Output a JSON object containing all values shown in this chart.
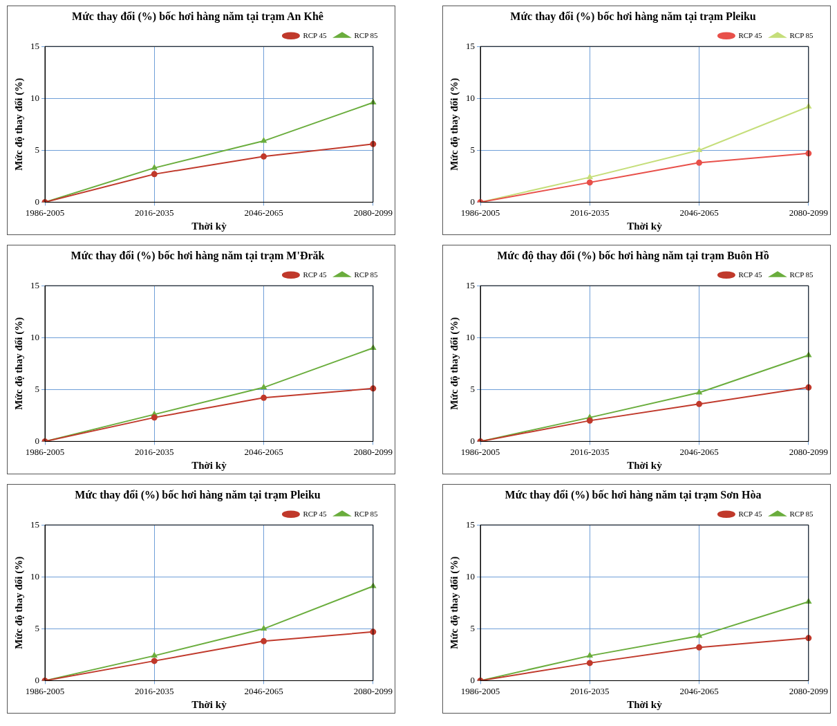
{
  "chart_data": [
    {
      "type": "line",
      "title": "Mức thay đổi (%) bốc hơi hàng năm tại trạm An Khê",
      "xlabel": "Thời kỳ",
      "ylabel": "Mức độ thay đổi (%)",
      "categories": [
        "1986-2005",
        "2016-2035",
        "2046-2065",
        "2080-2099"
      ],
      "ylim": [
        0,
        15
      ],
      "yticks": [
        0,
        5,
        10,
        15
      ],
      "grid": true,
      "legend": "top right",
      "line_style": "solid",
      "series": [
        {
          "name": "RCP 45",
          "color": "#c0392b",
          "marker": "circle",
          "values": [
            0,
            2.7,
            4.4,
            5.6
          ]
        },
        {
          "name": "RCP 85",
          "color": "#6aad3d",
          "marker": "triangle",
          "values": [
            0,
            3.3,
            5.9,
            9.6
          ]
        }
      ]
    },
    {
      "type": "line",
      "title": "Mức thay đổi (%) bốc hơi hàng năm tại trạm Pleiku",
      "xlabel": "Thời kỳ",
      "ylabel": "Mức độ thay đổi (%)",
      "categories": [
        "1986-2005",
        "2016-2035",
        "2046-2065",
        "2080-2099"
      ],
      "ylim": [
        0,
        15
      ],
      "yticks": [
        0,
        5,
        10,
        15
      ],
      "grid": true,
      "legend": "top right",
      "line_style": "solid",
      "series": [
        {
          "name": "RCP 45",
          "color": "#e8504a",
          "marker": "circle",
          "values": [
            0,
            1.9,
            3.8,
            4.7
          ]
        },
        {
          "name": "RCP 85",
          "color": "#c5de7a",
          "marker": "triangle",
          "values": [
            0,
            2.4,
            5.0,
            9.2
          ]
        }
      ]
    },
    {
      "type": "line",
      "title": "Mức thay đổi (%) bốc hơi hàng năm tại trạm M'Đrăk",
      "xlabel": "Thời kỳ",
      "ylabel": "Mức độ thay đổi (%)",
      "categories": [
        "1986-2005",
        "2016-2035",
        "2046-2065",
        "2080-2099"
      ],
      "ylim": [
        0,
        15
      ],
      "yticks": [
        0,
        5,
        10,
        15
      ],
      "grid": true,
      "legend": "top right",
      "line_style": "solid",
      "series": [
        {
          "name": "RCP 45",
          "color": "#c0392b",
          "marker": "circle",
          "values": [
            0,
            2.3,
            4.2,
            5.1
          ]
        },
        {
          "name": "RCP 85",
          "color": "#6aad3d",
          "marker": "triangle",
          "values": [
            0,
            2.6,
            5.2,
            9.0
          ]
        }
      ]
    },
    {
      "type": "line",
      "title": "Mức độ thay đổi (%) bốc hơi hàng năm tại trạm Buôn Hồ",
      "xlabel": "Thời kỳ",
      "ylabel": "Mức độ thay đổi (%)",
      "categories": [
        "1986-2005",
        "2016-2035",
        "2046-2065",
        "2080-2099"
      ],
      "ylim": [
        0,
        15
      ],
      "yticks": [
        0,
        5,
        10,
        15
      ],
      "grid": true,
      "legend": "top right",
      "line_style": "solid",
      "series": [
        {
          "name": "RCP 45",
          "color": "#c0392b",
          "marker": "circle",
          "values": [
            0,
            2.0,
            3.6,
            5.2
          ]
        },
        {
          "name": "RCP 85",
          "color": "#6aad3d",
          "marker": "triangle",
          "values": [
            0,
            2.3,
            4.7,
            8.3
          ]
        }
      ]
    },
    {
      "type": "line",
      "title": "Mức thay đổi (%) bốc hơi hàng năm tại trạm Pleiku",
      "xlabel": "Thời kỳ",
      "ylabel": "Mức độ thay đổi (%)",
      "categories": [
        "1986-2005",
        "2016-2035",
        "2046-2065",
        "2080-2099"
      ],
      "ylim": [
        0,
        15
      ],
      "yticks": [
        0,
        5,
        10,
        15
      ],
      "grid": true,
      "legend": "top right",
      "line_style": "solid",
      "series": [
        {
          "name": "RCP 45",
          "color": "#c0392b",
          "marker": "circle",
          "values": [
            0,
            1.9,
            3.8,
            4.7
          ]
        },
        {
          "name": "RCP 85",
          "color": "#6aad3d",
          "marker": "triangle",
          "values": [
            0,
            2.4,
            5.0,
            9.1
          ]
        }
      ]
    },
    {
      "type": "line",
      "title": "Mức thay đổi (%) bốc hơi hàng năm tại trạm Sơn Hòa",
      "xlabel": "Thời kỳ",
      "ylabel": "Mức độ thay đổi (%)",
      "categories": [
        "1986-2005",
        "2016-2035",
        "2046-2065",
        "2080-2099"
      ],
      "ylim": [
        0,
        15
      ],
      "yticks": [
        0,
        5,
        10,
        15
      ],
      "grid": true,
      "legend": "top right",
      "line_style": "solid",
      "series": [
        {
          "name": "RCP 45",
          "color": "#c0392b",
          "marker": "circle",
          "values": [
            0,
            1.7,
            3.2,
            4.1
          ]
        },
        {
          "name": "RCP 85",
          "color": "#6aad3d",
          "marker": "triangle",
          "values": [
            0,
            2.4,
            4.3,
            7.6
          ]
        }
      ]
    }
  ]
}
